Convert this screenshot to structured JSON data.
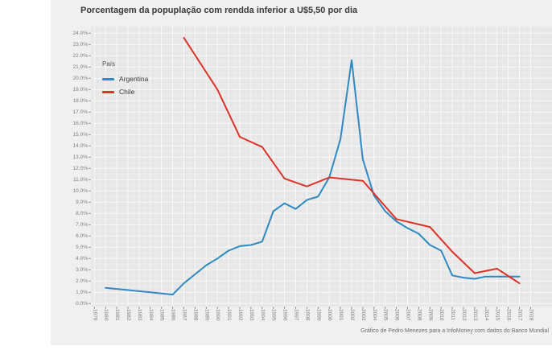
{
  "title": "Porcentagem da popuplação com rendda inferior a U$5,50 por dia",
  "caption": "Gráfico de Pedro Menezes para a InfoMoney com dados do Banco Mundial",
  "legend": {
    "title": "País",
    "items": [
      "Argentina",
      "Chile"
    ]
  },
  "colors": {
    "figure_background": "#f0f0f0",
    "panel_background": "#e7e7e7",
    "major_gridline": "#fafafa",
    "minor_gridline": "#eeeeee",
    "tick": "#8c8c8c",
    "tick_label": "#7f7f7f",
    "title_text": "#3a3a3a",
    "argentina": "#2d8ac2",
    "chile": "#dd3226"
  },
  "chart_data": {
    "type": "line",
    "title": "Porcentagem da popuplação com rendda inferior a U$5,50 por dia",
    "xlabel": "",
    "ylabel": "",
    "legend_title": "País",
    "legend_position": "inside-top-left",
    "grid": true,
    "ylim": [
      0,
      24
    ],
    "ytick_step": 1.0,
    "y_ticks": [
      "0.0%",
      "1.0%",
      "2.0%",
      "3.0%",
      "4.0%",
      "5.0%",
      "6.0%",
      "7.0%",
      "8.0%",
      "9.0%",
      "10.0%",
      "11.0%",
      "12.0%",
      "13.0%",
      "14.0%",
      "15.0%",
      "16.0%",
      "17.0%",
      "18.0%",
      "19.0%",
      "20.0%",
      "21.0%",
      "22.0%",
      "23.0%",
      "24.0%"
    ],
    "x": [
      1979,
      1980,
      1981,
      1982,
      1983,
      1984,
      1985,
      1986,
      1987,
      1988,
      1989,
      1990,
      1991,
      1992,
      1993,
      1994,
      1995,
      1996,
      1997,
      1998,
      1999,
      2000,
      2001,
      2002,
      2003,
      2004,
      2005,
      2006,
      2007,
      2008,
      2009,
      2010,
      2011,
      2012,
      2013,
      2014,
      2015,
      2016,
      2017,
      2018
    ],
    "series": [
      {
        "name": "Argentina",
        "color": "#2d8ac2",
        "values": [
          null,
          1.4,
          1.3,
          1.2,
          1.1,
          1.0,
          0.9,
          0.8,
          1.8,
          2.6,
          3.4,
          4.0,
          4.7,
          5.1,
          5.2,
          5.5,
          8.2,
          8.9,
          8.4,
          9.2,
          9.5,
          11.2,
          14.6,
          21.6,
          12.8,
          9.6,
          8.2,
          7.3,
          6.7,
          6.2,
          5.2,
          4.7,
          2.5,
          2.3,
          2.2,
          2.4,
          2.4,
          2.4,
          2.4,
          null
        ]
      },
      {
        "name": "Chile",
        "color": "#dd3226",
        "values": [
          null,
          null,
          null,
          null,
          null,
          null,
          null,
          null,
          23.6,
          null,
          null,
          19.0,
          null,
          14.8,
          null,
          13.9,
          null,
          11.1,
          null,
          10.4,
          null,
          11.2,
          null,
          null,
          10.9,
          null,
          null,
          7.5,
          null,
          null,
          6.8,
          null,
          4.6,
          null,
          2.7,
          null,
          3.1,
          null,
          1.8,
          null
        ]
      }
    ]
  }
}
